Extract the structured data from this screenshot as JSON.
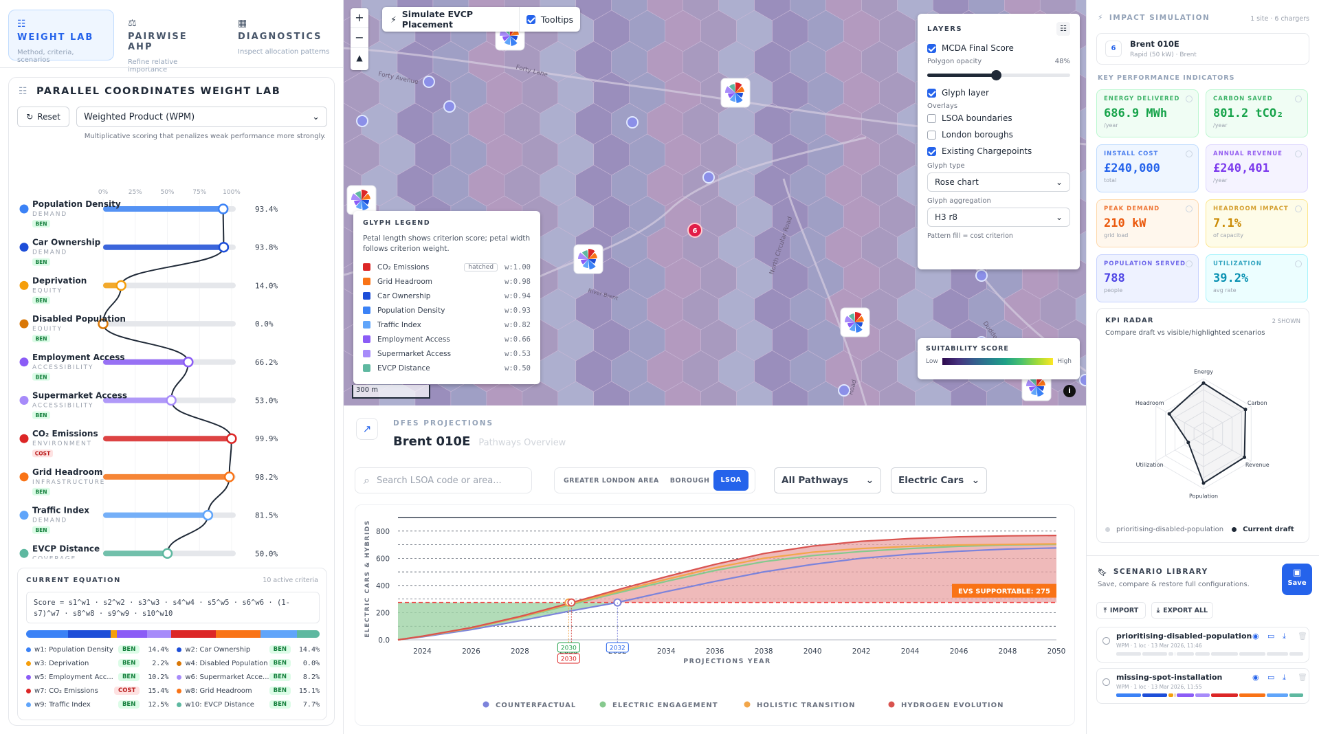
{
  "tabs": [
    {
      "label": "WEIGHT LAB",
      "sub": "Method, criteria, scenarios"
    },
    {
      "label": "PAIRWISE AHP",
      "sub": "Refine relative importance"
    },
    {
      "label": "DIAGNOSTICS",
      "sub": "Inspect allocation patterns"
    }
  ],
  "weightlab": {
    "title": "PARALLEL COORDINATES WEIGHT LAB",
    "reset": "Reset",
    "method": "Weighted Product (WPM)",
    "method_desc": "Multiplicative scoring that penalizes weak performance more strongly.",
    "ticks": [
      "0%",
      "25%",
      "50%",
      "75%",
      "100%"
    ]
  },
  "criteria": [
    {
      "name": "Population Density",
      "cat": "DEMAND",
      "type": "BEN",
      "color": "#3b82f6",
      "value": 93.4,
      "pct": "93.4%"
    },
    {
      "name": "Car Ownership",
      "cat": "DEMAND",
      "type": "BEN",
      "color": "#1d4ed8",
      "value": 93.8,
      "pct": "93.8%"
    },
    {
      "name": "Deprivation",
      "cat": "EQUITY",
      "type": "BEN",
      "color": "#f59e0b",
      "value": 14.0,
      "pct": "14.0%"
    },
    {
      "name": "Disabled Population",
      "cat": "EQUITY",
      "type": "BEN",
      "color": "#d97706",
      "value": 0.0,
      "pct": "0.0%"
    },
    {
      "name": "Employment Access",
      "cat": "ACCESSIBILITY",
      "type": "BEN",
      "color": "#8b5cf6",
      "value": 66.2,
      "pct": "66.2%"
    },
    {
      "name": "Supermarket Access",
      "cat": "ACCESSIBILITY",
      "type": "BEN",
      "color": "#a78bfa",
      "value": 53.0,
      "pct": "53.0%"
    },
    {
      "name": "CO₂ Emissions",
      "cat": "ENVIRONMENT",
      "type": "COST",
      "color": "#dc2626",
      "value": 99.9,
      "pct": "99.9%"
    },
    {
      "name": "Grid Headroom",
      "cat": "INFRASTRUCTURE",
      "type": "BEN",
      "color": "#f97316",
      "value": 98.2,
      "pct": "98.2%"
    },
    {
      "name": "Traffic Index",
      "cat": "DEMAND",
      "type": "BEN",
      "color": "#60a5fa",
      "value": 81.5,
      "pct": "81.5%"
    },
    {
      "name": "EVCP Distance",
      "cat": "COVERAGE",
      "type": "BEN",
      "color": "#5eb8a0",
      "value": 50.0,
      "pct": "50.0%"
    }
  ],
  "equation": {
    "title": "CURRENT EQUATION",
    "count": "10 active criteria",
    "formula": "Score = s1^w1 · s2^w2 · s3^w3 · s4^w4 · s5^w5 · s6^w6 · (1-s7)^w7 · s8^w8 · s9^w9 · s10^w10",
    "weights": [
      {
        "label": "w1: Population Density",
        "type": "BEN",
        "val": "14.4%",
        "color": "#3b82f6"
      },
      {
        "label": "w2: Car Ownership",
        "type": "BEN",
        "val": "14.4%",
        "color": "#1d4ed8"
      },
      {
        "label": "w3: Deprivation",
        "type": "BEN",
        "val": "2.2%",
        "color": "#f59e0b"
      },
      {
        "label": "w4: Disabled Population",
        "type": "BEN",
        "val": "0.0%",
        "color": "#d97706"
      },
      {
        "label": "w5: Employment Acc...",
        "type": "BEN",
        "val": "10.2%",
        "color": "#8b5cf6"
      },
      {
        "label": "w6: Supermarket Acce...",
        "type": "BEN",
        "val": "8.2%",
        "color": "#a78bfa"
      },
      {
        "label": "w7: CO₂ Emissions",
        "type": "COST",
        "val": "15.4%",
        "color": "#dc2626"
      },
      {
        "label": "w8: Grid Headroom",
        "type": "BEN",
        "val": "15.1%",
        "color": "#f97316"
      },
      {
        "label": "w9: Traffic Index",
        "type": "BEN",
        "val": "12.5%",
        "color": "#60a5fa"
      },
      {
        "label": "w10: EVCP Distance",
        "type": "BEN",
        "val": "7.7%",
        "color": "#5eb8a0"
      }
    ],
    "bar": [
      14.4,
      14.4,
      2.2,
      0.0,
      10.2,
      8.2,
      15.4,
      15.1,
      12.5,
      7.7
    ]
  },
  "map": {
    "simulate": "Simulate EVCP Placement",
    "tooltips": "Tooltips",
    "scale": "300 m",
    "streets": [
      "Forty Avenue",
      "Forty Lane",
      "North Circular Road",
      "River Brent",
      "Dudden H",
      "Road"
    ],
    "cluster": "6",
    "layers": {
      "title": "LAYERS",
      "final": "MCDA Final Score",
      "opacity_label": "Polygon opacity",
      "opacity": "48%",
      "opacity_frac": 0.48,
      "glyph": "Glyph layer",
      "overlays": "Overlays",
      "lsoa": "LSOA boundaries",
      "boroughs": "London boroughs",
      "existing": "Existing Chargepoints",
      "glyph_type_label": "Glyph type",
      "glyph_type": "Rose chart",
      "glyph_agg_label": "Glyph aggregation",
      "glyph_agg": "H3 r8",
      "pattern": "Pattern fill = cost criterion"
    },
    "legend": {
      "title": "GLYPH LEGEND",
      "desc": "Petal length shows criterion score; petal width follows criterion weight.",
      "hatched": "hatched",
      "rows": [
        {
          "name": "CO₂ Emissions",
          "w": "w:1.00",
          "color": "#dc2626"
        },
        {
          "name": "Grid Headroom",
          "w": "w:0.98",
          "color": "#f97316"
        },
        {
          "name": "Car Ownership",
          "w": "w:0.94",
          "color": "#1d4ed8"
        },
        {
          "name": "Population Density",
          "w": "w:0.93",
          "color": "#3b82f6"
        },
        {
          "name": "Traffic Index",
          "w": "w:0.82",
          "color": "#60a5fa"
        },
        {
          "name": "Employment Access",
          "w": "w:0.66",
          "color": "#8b5cf6"
        },
        {
          "name": "Supermarket Access",
          "w": "w:0.53",
          "color": "#a78bfa"
        },
        {
          "name": "EVCP Distance",
          "w": "w:0.50",
          "color": "#5eb8a0"
        }
      ]
    },
    "suit": {
      "title": "SUITABILITY SCORE",
      "low": "Low",
      "high": "High"
    }
  },
  "dfes": {
    "label": "DFES PROJECTIONS",
    "title": "Brent 010E",
    "sub": "Pathways Overview",
    "search_ph": "Search LSOA code or area...",
    "geo": [
      "GREATER LONDON AREA",
      "BOROUGH",
      "LSOA"
    ],
    "pathway": "All Pathways",
    "vehicle": "Electric Cars"
  },
  "chart_data": {
    "type": "area",
    "xlabel": "PROJECTIONS YEAR",
    "ylabel": "ELECTRIC CARS & HYBRIDS",
    "x": [
      2023,
      2024,
      2026,
      2028,
      2030,
      2032,
      2034,
      2036,
      2038,
      2040,
      2042,
      2044,
      2046,
      2048,
      2050
    ],
    "xticks": [
      2024,
      2026,
      2028,
      2030,
      2032,
      2034,
      2036,
      2038,
      2040,
      2042,
      2044,
      2046,
      2048,
      2050
    ],
    "yticks": [
      0,
      200,
      400,
      600,
      800
    ],
    "ylim": [
      0,
      900
    ],
    "supportable": 275,
    "supportable_label": "EVS SUPPORTABLE: 275",
    "series": [
      {
        "name": "COUNTERFACTUAL",
        "color": "#7c83db",
        "values": [
          0,
          22,
          75,
          140,
          210,
          275,
          355,
          430,
          500,
          555,
          600,
          630,
          652,
          668,
          676
        ]
      },
      {
        "name": "ELECTRIC ENGAGEMENT",
        "color": "#86c98e",
        "values": [
          0,
          26,
          85,
          165,
          255,
          345,
          430,
          510,
          575,
          620,
          650,
          672,
          688,
          698,
          702
        ]
      },
      {
        "name": "HOLISTIC TRANSITION",
        "color": "#f2a64a",
        "values": [
          0,
          26,
          87,
          168,
          262,
          355,
          445,
          530,
          600,
          645,
          672,
          688,
          698,
          702,
          706
        ]
      },
      {
        "name": "HYDROGEN EVOLUTION",
        "color": "#d9534f",
        "values": [
          0,
          27,
          90,
          172,
          268,
          368,
          465,
          555,
          635,
          690,
          725,
          745,
          758,
          765,
          768
        ]
      }
    ],
    "markers": [
      {
        "x": 2030,
        "label": "2030",
        "color": "#22a04a"
      },
      {
        "x": 2030,
        "label": "2030",
        "color": "#dc2626"
      },
      {
        "x": 2032,
        "label": "2032",
        "color": "#2563eb"
      }
    ]
  },
  "impact": {
    "title": "IMPACT SIMULATION",
    "meta": "1 site · 6 chargers",
    "site_num": "6",
    "site": "Brent 010E",
    "site_sub": "Rapid (50 kW) · Brent",
    "kpi_title": "KEY PERFORMANCE INDICATORS",
    "kpis": [
      {
        "label": "ENERGY DELIVERED",
        "value": "686.9 MWh",
        "unit": "/year",
        "bg": "#f0fdf4",
        "bd": "#bbf7d0",
        "fg": "#16a34a"
      },
      {
        "label": "CARBON SAVED",
        "value": "801.2 tCO₂",
        "unit": "/year",
        "bg": "#f0fdf4",
        "bd": "#bbf7d0",
        "fg": "#16a34a"
      },
      {
        "label": "INSTALL COST",
        "value": "£240,000",
        "unit": "total",
        "bg": "#eff6ff",
        "bd": "#bfdbfe",
        "fg": "#2563eb"
      },
      {
        "label": "ANNUAL REVENUE",
        "value": "£240,401",
        "unit": "/year",
        "bg": "#f5f3ff",
        "bd": "#ddd6fe",
        "fg": "#7c3aed"
      },
      {
        "label": "PEAK DEMAND",
        "value": "210 kW",
        "unit": "grid load",
        "bg": "#fff7ed",
        "bd": "#fed7aa",
        "fg": "#ea580c"
      },
      {
        "label": "HEADROOM IMPACT",
        "value": "7.1%",
        "unit": "of capacity",
        "bg": "#fefce8",
        "bd": "#fde68a",
        "fg": "#ca8a04"
      },
      {
        "label": "POPULATION SERVED",
        "value": "788",
        "unit": "people",
        "bg": "#eef2ff",
        "bd": "#c7d2fe",
        "fg": "#4f46e5"
      },
      {
        "label": "UTILIZATION",
        "value": "39.2%",
        "unit": "avg rate",
        "bg": "#ecfeff",
        "bd": "#a5f3fc",
        "fg": "#0891b2"
      }
    ],
    "radar": {
      "title": "KPI RADAR",
      "shown": "2 SHOWN",
      "desc": "Compare draft vs visible/highlighted scenarios",
      "axes": [
        "Energy",
        "Carbon",
        "Revenue",
        "Population",
        "Utilization",
        "Headroom"
      ],
      "draft": [
        0.92,
        0.88,
        0.86,
        0.9,
        0.32,
        0.72
      ],
      "legend_a": "prioritising-disabled-population",
      "legend_b": "Current draft"
    }
  },
  "library": {
    "title": "SCENARIO LIBRARY",
    "desc": "Save, compare & restore full configurations.",
    "save": "Save",
    "import": "IMPORT",
    "export": "EXPORT ALL",
    "items": [
      {
        "name": "prioritising-disabled-population",
        "meta": "WPM · 1 loc · 13 Mar 2026, 11:46"
      },
      {
        "name": "missing-spot-installation",
        "meta": "WPM · 1 loc · 13 Mar 2026, 11:55"
      }
    ]
  }
}
